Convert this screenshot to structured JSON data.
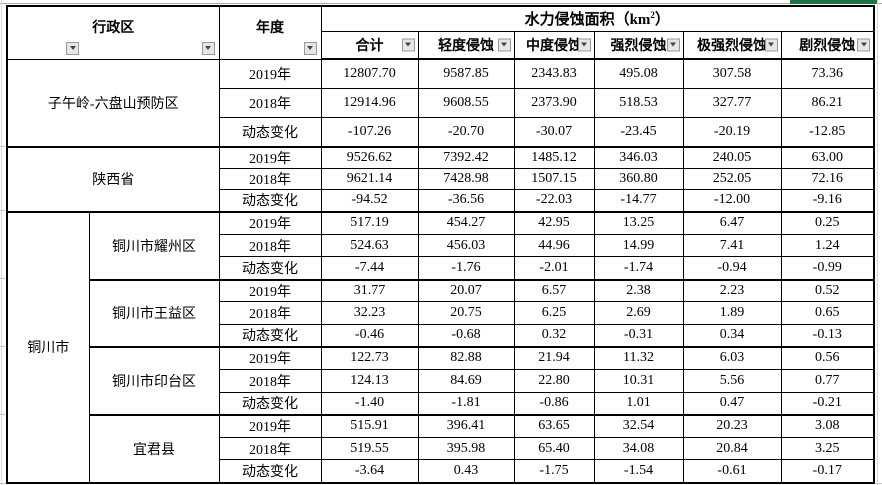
{
  "colors": {
    "selected_column_indicator": "#217346",
    "table_border": "#000000"
  },
  "table": {
    "headers": {
      "admin_region": "行政区",
      "year": "年度",
      "area_title_prefix": "水力侵蚀面积（km",
      "area_title_sup": "2",
      "area_title_suffix": "）",
      "columns": [
        "合计",
        "轻度侵蚀",
        "中度侵蚀",
        "强烈侵蚀",
        "极强烈侵蚀",
        "剧烈侵蚀"
      ]
    },
    "groups": [
      {
        "region": "子午岭-六盘山预防区",
        "rows": [
          {
            "label": "2019年",
            "values": [
              "12807.70",
              "9587.85",
              "2343.83",
              "495.08",
              "307.58",
              "73.36"
            ]
          },
          {
            "label": "2018年",
            "values": [
              "12914.96",
              "9608.55",
              "2373.90",
              "518.53",
              "327.77",
              "86.21"
            ]
          },
          {
            "label": "动态变化",
            "values": [
              "-107.26",
              "-20.70",
              "-30.07",
              "-23.45",
              "-20.19",
              "-12.85"
            ]
          }
        ]
      },
      {
        "region": "陕西省",
        "rows": [
          {
            "label": "2019年",
            "values": [
              "9526.62",
              "7392.42",
              "1485.12",
              "346.03",
              "240.05",
              "63.00"
            ]
          },
          {
            "label": "2018年",
            "values": [
              "9621.14",
              "7428.98",
              "1507.15",
              "360.80",
              "252.05",
              "72.16"
            ]
          },
          {
            "label": "动态变化",
            "values": [
              "-94.52",
              "-36.56",
              "-22.03",
              "-14.77",
              "-12.00",
              "-9.16"
            ]
          }
        ]
      },
      {
        "region": "铜川市",
        "subgroups": [
          {
            "name": "铜川市耀州区",
            "rows": [
              {
                "label": "2019年",
                "values": [
                  "517.19",
                  "454.27",
                  "42.95",
                  "13.25",
                  "6.47",
                  "0.25"
                ]
              },
              {
                "label": "2018年",
                "values": [
                  "524.63",
                  "456.03",
                  "44.96",
                  "14.99",
                  "7.41",
                  "1.24"
                ]
              },
              {
                "label": "动态变化",
                "values": [
                  "-7.44",
                  "-1.76",
                  "-2.01",
                  "-1.74",
                  "-0.94",
                  "-0.99"
                ]
              }
            ]
          },
          {
            "name": "铜川市王益区",
            "rows": [
              {
                "label": "2019年",
                "values": [
                  "31.77",
                  "20.07",
                  "6.57",
                  "2.38",
                  "2.23",
                  "0.52"
                ]
              },
              {
                "label": "2018年",
                "values": [
                  "32.23",
                  "20.75",
                  "6.25",
                  "2.69",
                  "1.89",
                  "0.65"
                ]
              },
              {
                "label": "动态变化",
                "values": [
                  "-0.46",
                  "-0.68",
                  "0.32",
                  "-0.31",
                  "0.34",
                  "-0.13"
                ]
              }
            ]
          },
          {
            "name": "铜川市印台区",
            "rows": [
              {
                "label": "2019年",
                "values": [
                  "122.73",
                  "82.88",
                  "21.94",
                  "11.32",
                  "6.03",
                  "0.56"
                ]
              },
              {
                "label": "2018年",
                "values": [
                  "124.13",
                  "84.69",
                  "22.80",
                  "10.31",
                  "5.56",
                  "0.77"
                ]
              },
              {
                "label": "动态变化",
                "values": [
                  "-1.40",
                  "-1.81",
                  "-0.86",
                  "1.01",
                  "0.47",
                  "-0.21"
                ]
              }
            ]
          },
          {
            "name": "宜君县",
            "rows": [
              {
                "label": "2019年",
                "values": [
                  "515.91",
                  "396.41",
                  "63.65",
                  "32.54",
                  "20.23",
                  "3.08"
                ]
              },
              {
                "label": "2018年",
                "values": [
                  "519.55",
                  "395.98",
                  "65.40",
                  "34.08",
                  "20.84",
                  "3.25"
                ]
              },
              {
                "label": "动态变化",
                "values": [
                  "-3.64",
                  "0.43",
                  "-1.75",
                  "-1.54",
                  "-0.61",
                  "-0.17"
                ]
              }
            ]
          }
        ]
      }
    ]
  }
}
